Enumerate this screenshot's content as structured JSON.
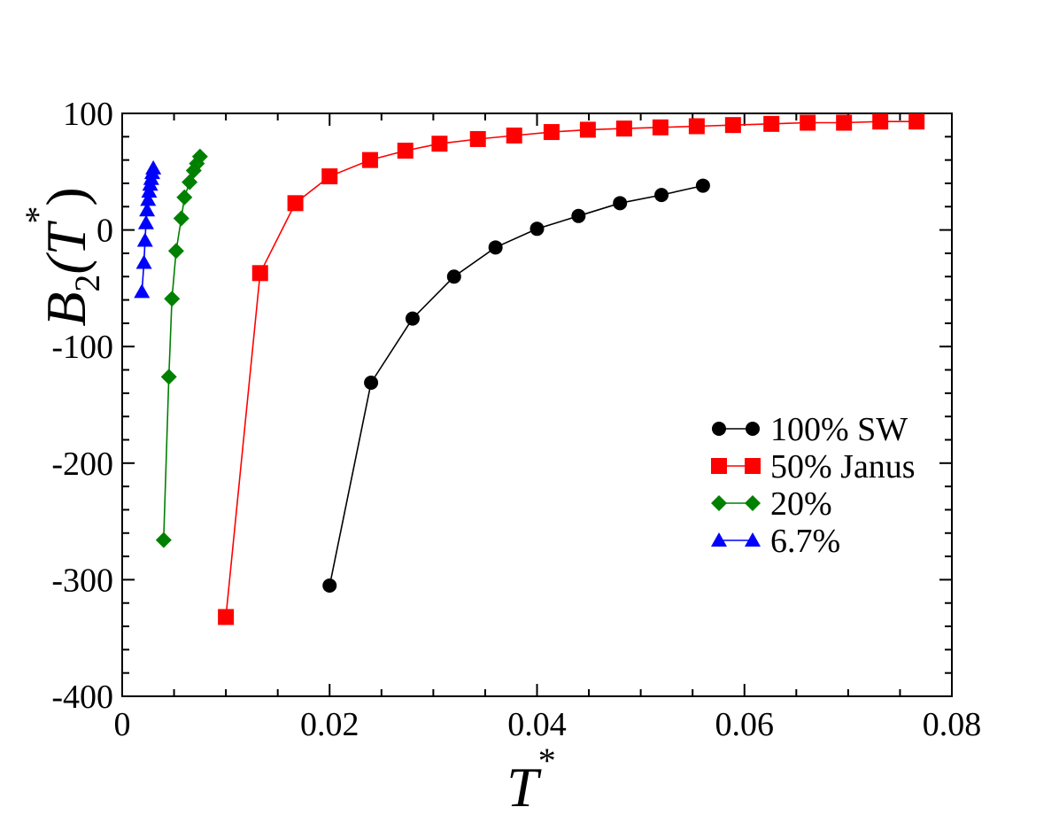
{
  "chart_data": {
    "type": "line",
    "title": "",
    "xlabel": "T",
    "xlabel_superscript": "*",
    "ylabel": {
      "base": "B",
      "subscript": "2",
      "open": "(",
      "var": "T",
      "superscript": "*",
      "close": ")"
    },
    "xlim": [
      0,
      0.08
    ],
    "ylim": [
      -400,
      100
    ],
    "x_ticks": [
      0,
      0.02,
      0.04,
      0.06,
      0.08
    ],
    "x_tick_labels": [
      "0",
      "0.02",
      "0.04",
      "0.06",
      "0.08"
    ],
    "y_ticks": [
      -400,
      -300,
      -200,
      -100,
      0,
      100
    ],
    "y_tick_labels": [
      "-400",
      "-300",
      "-200",
      "-100",
      "0",
      "100"
    ],
    "grid": false,
    "legend_position": "center-right",
    "series": [
      {
        "name": "100% SW",
        "color": "#000000",
        "marker": "circle",
        "x": [
          0.02,
          0.024,
          0.028,
          0.032,
          0.036,
          0.04,
          0.044,
          0.048,
          0.052,
          0.056
        ],
        "y": [
          -305,
          -131,
          -76,
          -40,
          -15,
          1,
          12,
          23,
          30,
          38
        ]
      },
      {
        "name": "50% Janus",
        "color": "#ff0000",
        "marker": "square",
        "x": [
          0.01,
          0.0133,
          0.0167,
          0.02,
          0.0239,
          0.0273,
          0.0306,
          0.0343,
          0.0378,
          0.0414,
          0.0449,
          0.0484,
          0.0519,
          0.0554,
          0.0589,
          0.0626,
          0.0661,
          0.0696,
          0.0731,
          0.0766
        ],
        "y": [
          -332,
          -37,
          23,
          46,
          60,
          68,
          74,
          78,
          81,
          84,
          86,
          87,
          88,
          89,
          90,
          91,
          92,
          92,
          93,
          93
        ]
      },
      {
        "name": "20%",
        "color": "#008000",
        "marker": "diamond",
        "x": [
          0.004,
          0.0045,
          0.0048,
          0.0052,
          0.0057,
          0.006,
          0.0065,
          0.0069,
          0.0072,
          0.0075
        ],
        "y": [
          -266,
          -126,
          -59,
          -18,
          10,
          28,
          41,
          51,
          57,
          63
        ]
      },
      {
        "name": "6.7%",
        "color": "#0000ff",
        "marker": "triangle",
        "x": [
          0.0019,
          0.0021,
          0.0022,
          0.0023,
          0.0024,
          0.0025,
          0.0026,
          0.0027,
          0.0028,
          0.0029,
          0.003
        ],
        "y": [
          -53,
          -28,
          -9,
          6,
          17,
          26,
          33,
          39,
          44,
          49,
          53
        ]
      }
    ]
  }
}
